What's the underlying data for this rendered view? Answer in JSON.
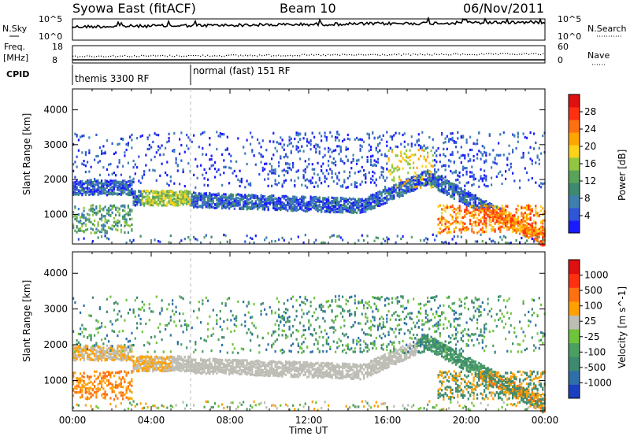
{
  "header": {
    "station": "Syowa East (fitACF)",
    "beam": "Beam 10",
    "date": "06/Nov/2011"
  },
  "noise_panel": {
    "left_label": "N.Sky",
    "right_label": "N.Search",
    "left_ticks": [
      "10^5",
      "10^0"
    ],
    "right_ticks": [
      "10^5",
      "10^0"
    ]
  },
  "freq_panel": {
    "left_label": "Freq.",
    "left_unit": "[MHz]",
    "left_ticks": [
      "18",
      "8"
    ],
    "right_label": "Nave",
    "right_ticks": [
      "60",
      "0"
    ]
  },
  "cpid_panel": {
    "label": "CPID",
    "segments": [
      {
        "name": "themis 3300 RF",
        "start_hour": 0
      },
      {
        "name": "normal (fast) 151 RF",
        "start_hour": 6
      }
    ]
  },
  "chart_data": [
    {
      "type": "heatmap",
      "name": "power",
      "xlabel": "",
      "ylabel": "Slant Range [km]",
      "xlim": [
        0,
        24
      ],
      "ylim": [
        150,
        4600
      ],
      "yticks": [
        1000,
        2000,
        3000,
        4000
      ],
      "colorbar": {
        "label": "Power [dB]",
        "ticks": [
          "4",
          "8",
          "12",
          "16",
          "20",
          "24",
          "28"
        ],
        "colors": [
          "#1a1aff",
          "#2f55d8",
          "#3e7fb0",
          "#3d8a6e",
          "#5aa45a",
          "#92c640",
          "#ffd21a",
          "#ffa500",
          "#ff7010",
          "#ff3010",
          "#e01010"
        ]
      }
    },
    {
      "type": "heatmap",
      "name": "velocity",
      "xlabel": "Time UT",
      "ylabel": "Slant Range [km]",
      "xlim": [
        0,
        24
      ],
      "ylim": [
        150,
        4600
      ],
      "xticks": [
        "00:00",
        "04:00",
        "08:00",
        "12:00",
        "16:00",
        "20:00",
        "00:00"
      ],
      "yticks": [
        1000,
        2000,
        3000,
        4000
      ],
      "colorbar": {
        "label": "Velocity [m s^-1]",
        "ticks": [
          "1000",
          "500",
          "100",
          "25",
          "-25",
          "-100",
          "-500",
          "-1000"
        ],
        "colors": [
          "#1a3fc0",
          "#2e6fa8",
          "#3d8a6e",
          "#4aa060",
          "#70c43a",
          "#bdbdb5",
          "#ffa000",
          "#ff7010",
          "#ff3010",
          "#e01010"
        ]
      }
    }
  ]
}
